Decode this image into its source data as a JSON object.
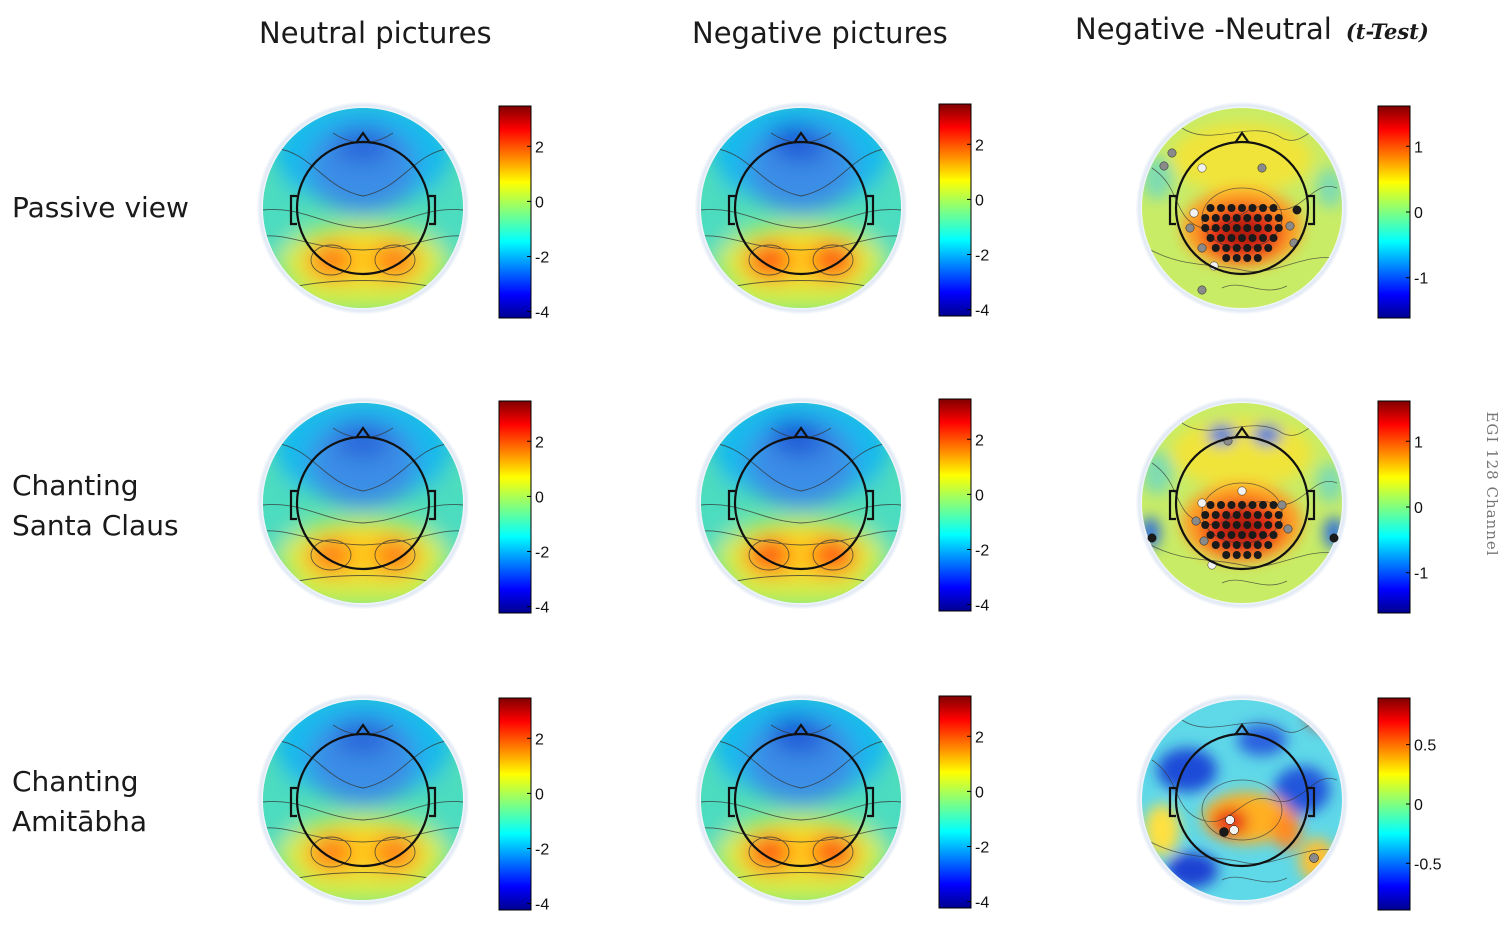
{
  "columns": {
    "neutral": "Neutral pictures",
    "negative": "Negative pictures",
    "difference": "Negative -Neutral",
    "difference_note": "(t-Test)"
  },
  "rows": [
    {
      "lines": [
        "Passive view"
      ]
    },
    {
      "lines": [
        "Chanting",
        "Santa Claus"
      ]
    },
    {
      "lines": [
        "Chanting",
        "Amitābha"
      ]
    }
  ],
  "colorbars": {
    "amplitude_ticks": [
      "2",
      "0",
      "-2",
      "-4"
    ],
    "row1_t_ticks": [
      "1",
      "0",
      "-1"
    ],
    "row2_t_ticks": [
      "1",
      "0",
      "-1"
    ],
    "row3_t_ticks": [
      "0.5",
      "0",
      "-0.5"
    ]
  },
  "side_note": "EGI 128 Channel",
  "colors": {
    "jet": [
      "#00008f",
      "#0000ff",
      "#0080ff",
      "#00ffff",
      "#80ff80",
      "#ffff00",
      "#ff8000",
      "#ff0000",
      "#800000"
    ],
    "electrode_dark": "#1a1a1a",
    "electrode_gray": "#8a8a8a",
    "electrode_white": "#f2f2f2"
  }
}
